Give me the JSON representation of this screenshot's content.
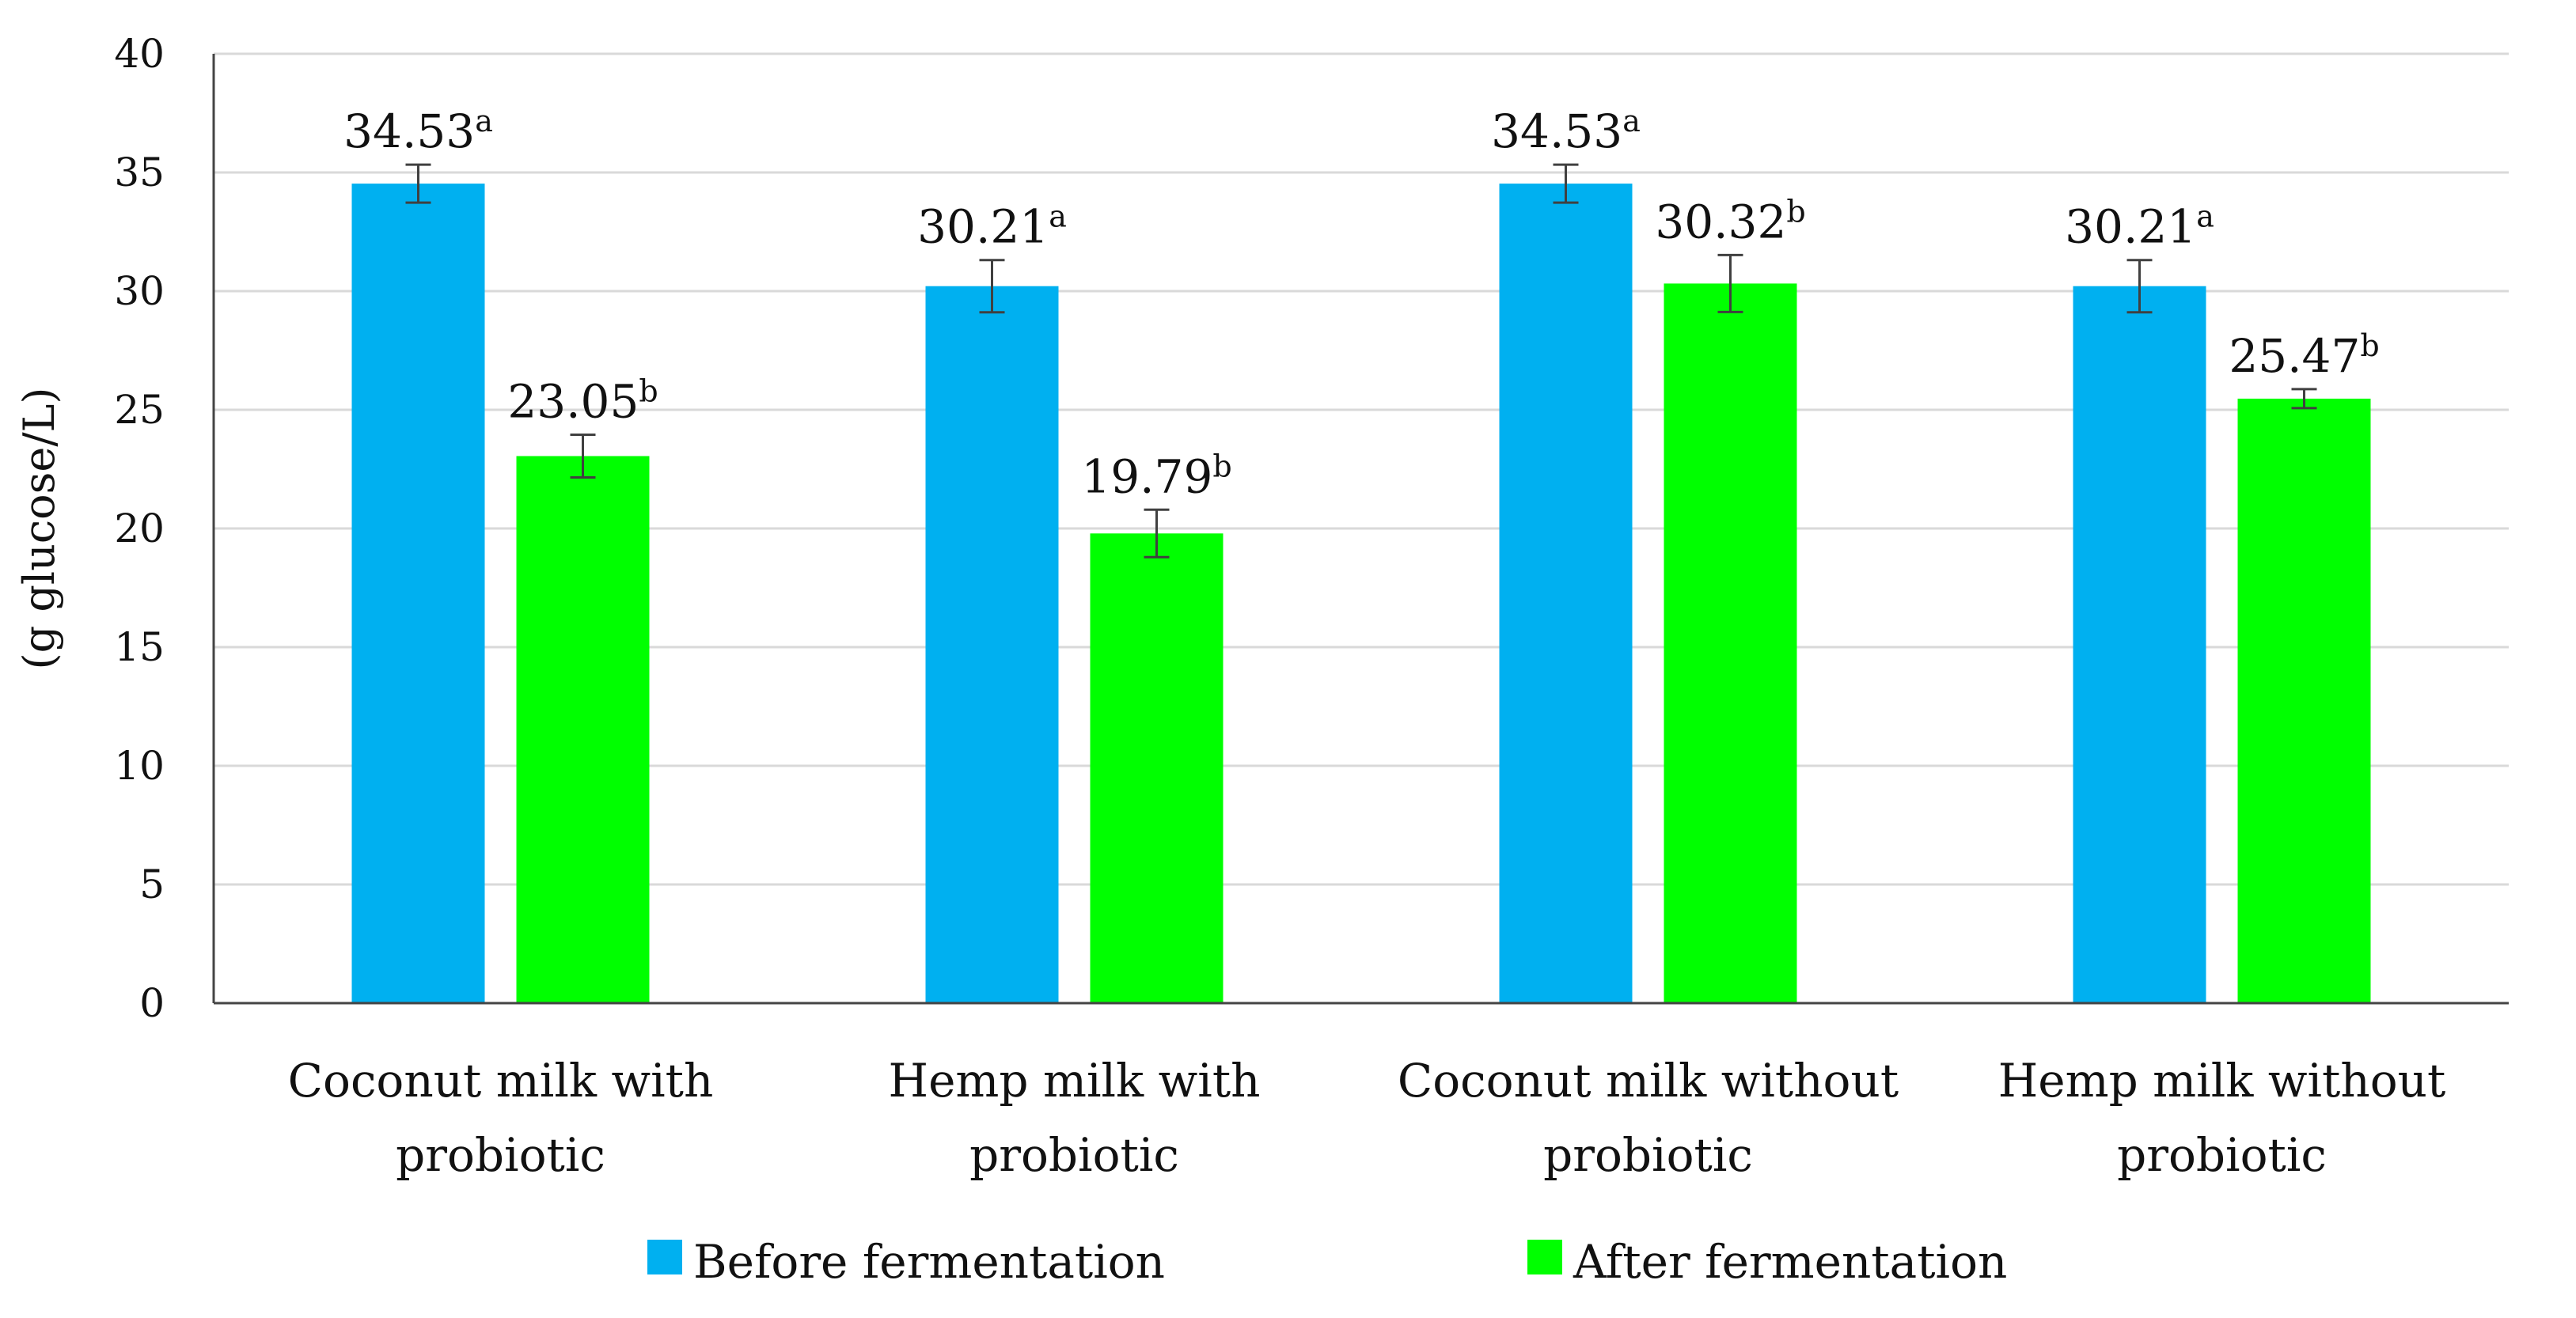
{
  "chart_data": {
    "type": "bar",
    "title": "",
    "xlabel": "",
    "ylabel": "(g glucose/L)",
    "ylim": [
      0,
      40
    ],
    "yticks": [
      0,
      5,
      10,
      15,
      20,
      25,
      30,
      35,
      40
    ],
    "grid": true,
    "legend_position": "bottom",
    "categories": [
      [
        "Coconut milk with",
        "probiotic"
      ],
      [
        "Hemp milk with",
        "probiotic"
      ],
      [
        "Coconut milk without",
        "probiotic"
      ],
      [
        "Hemp milk without",
        "probiotic"
      ]
    ],
    "series": [
      {
        "name": "Before fermentation",
        "color": "#00B0F0",
        "values": [
          34.53,
          30.21,
          34.53,
          30.21
        ],
        "errors": [
          0.8,
          1.1,
          0.8,
          1.1
        ],
        "labels": [
          "34.53",
          "30.21",
          "34.53",
          "30.21"
        ],
        "superscripts": [
          "a",
          "a",
          "a",
          "a"
        ]
      },
      {
        "name": "After fermentation",
        "color": "#00FF00",
        "values": [
          23.05,
          19.79,
          30.32,
          25.47
        ],
        "errors": [
          0.9,
          1.0,
          1.2,
          0.4
        ],
        "labels": [
          "23.05",
          "19.79",
          "30.32",
          "25.47"
        ],
        "superscripts": [
          "b",
          "b",
          "b",
          "b"
        ]
      }
    ]
  }
}
